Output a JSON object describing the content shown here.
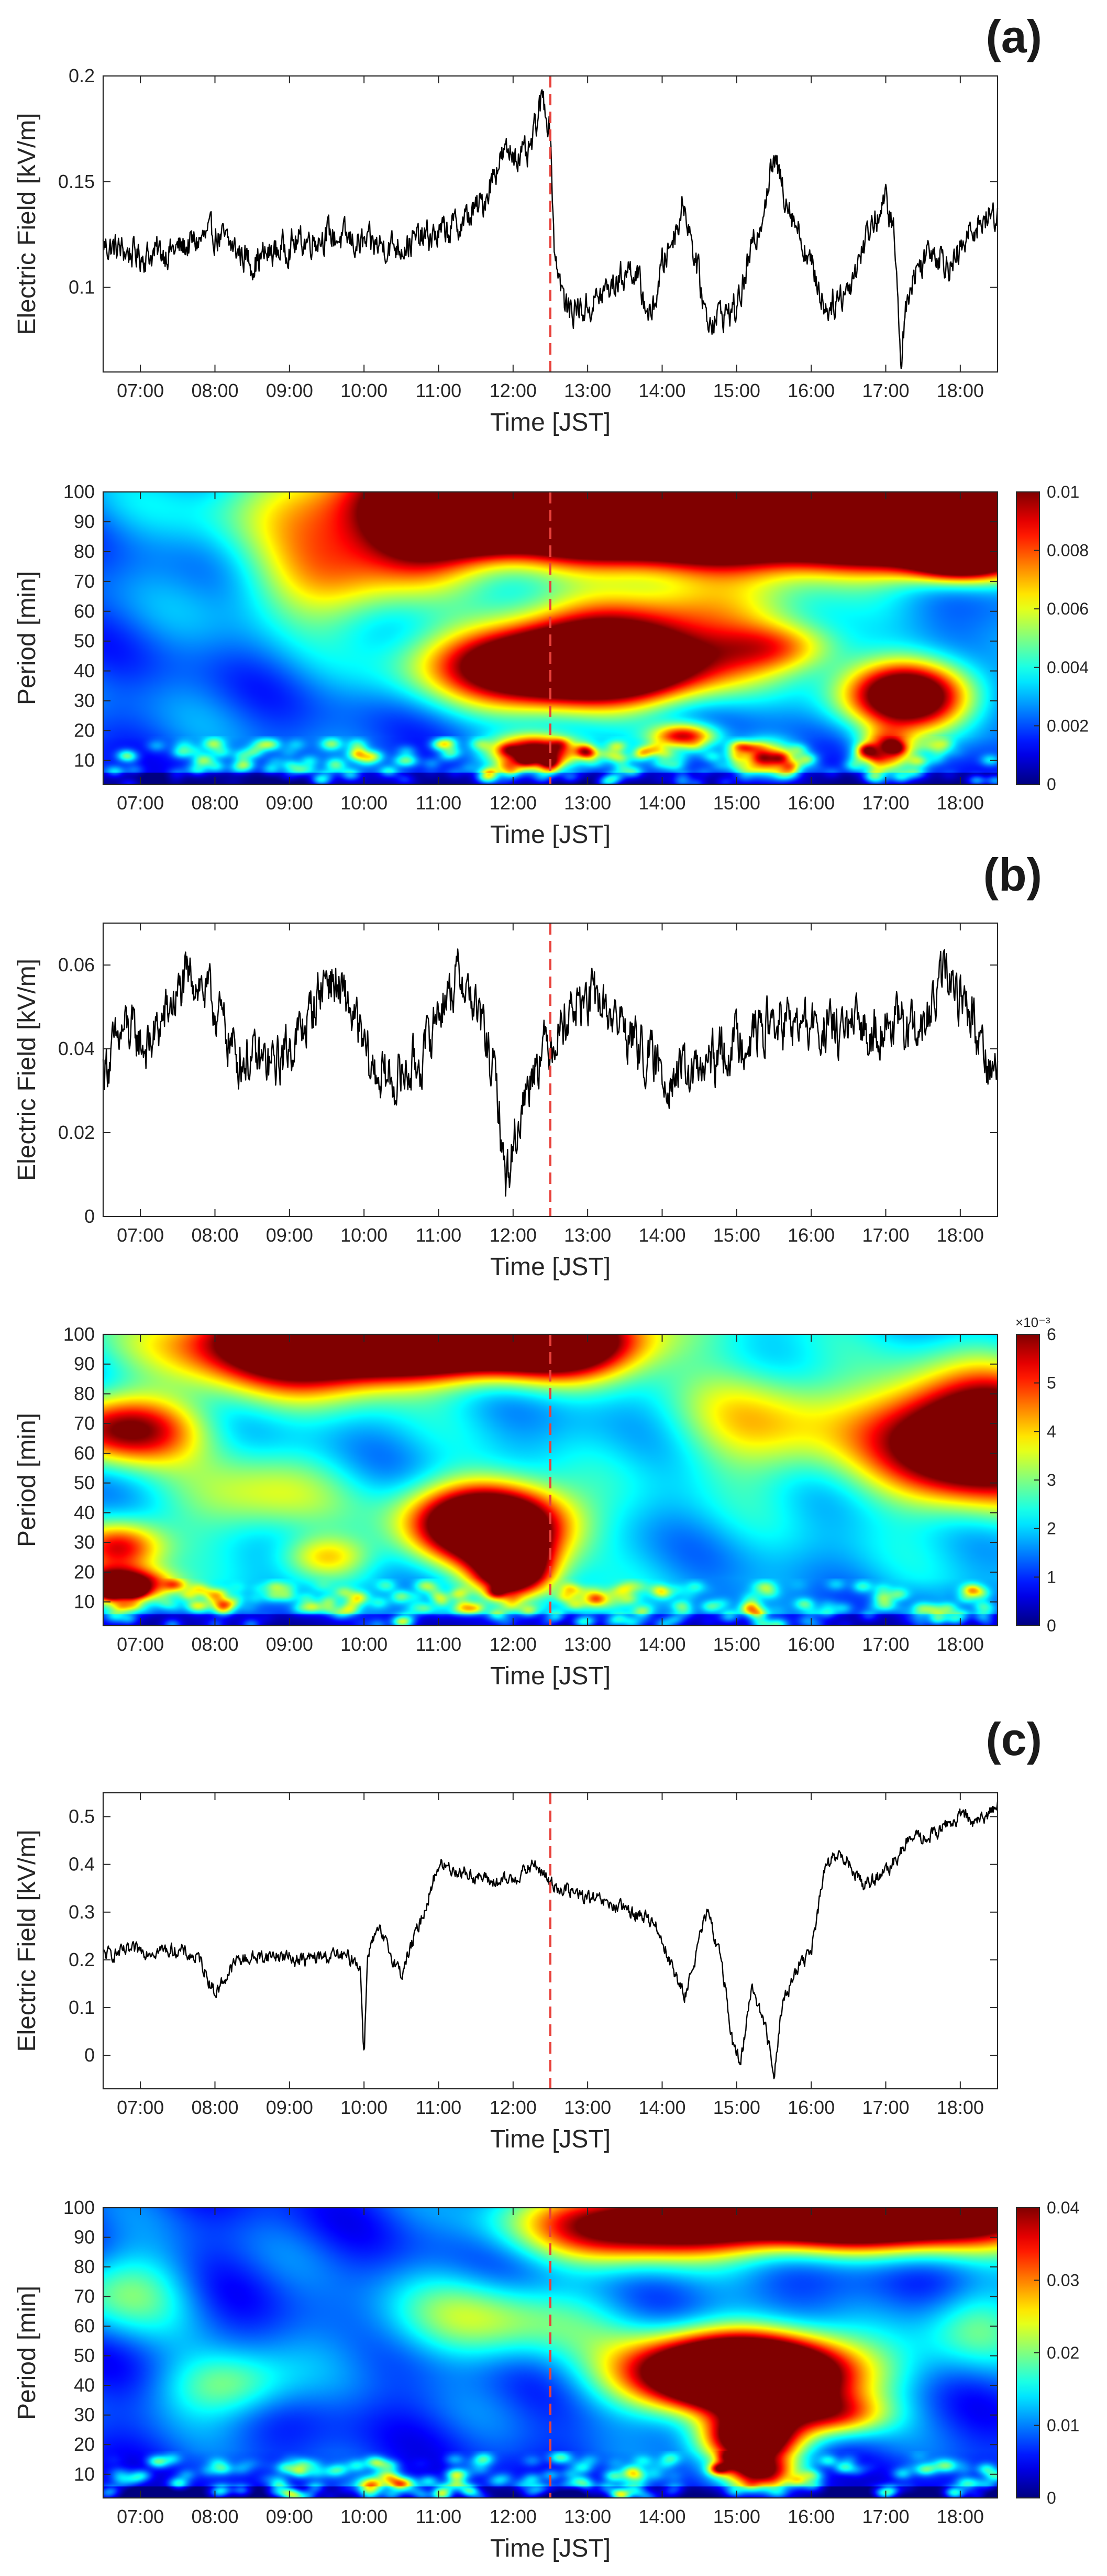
{
  "chart_data": [
    {
      "id": "a-field",
      "panel": "(a)",
      "type": "line",
      "xlabel": "Time [JST]",
      "ylabel": "Electric Field [kV/m]",
      "xlim": [
        6.5,
        18.5
      ],
      "ylim": [
        0.06,
        0.2
      ],
      "yticks": [
        0.1,
        0.15,
        0.2
      ],
      "ytick_labels": [
        "0.1",
        "0.15",
        "0.2"
      ],
      "xticks": [
        7,
        8,
        9,
        10,
        11,
        12,
        13,
        14,
        15,
        16,
        17,
        18
      ],
      "xtick_labels": [
        "07:00",
        "08:00",
        "09:00",
        "10:00",
        "11:00",
        "12:00",
        "13:00",
        "14:00",
        "15:00",
        "16:00",
        "17:00",
        "18:00"
      ],
      "marker_time": 12.5,
      "noise": 0.006,
      "x": [
        6.5,
        7.0,
        7.5,
        8.0,
        8.5,
        9.0,
        9.5,
        10.0,
        10.5,
        11.0,
        11.3,
        11.6,
        11.8,
        12.0,
        12.2,
        12.4,
        12.5,
        12.55,
        12.7,
        13.0,
        13.3,
        13.6,
        13.85,
        14.0,
        14.3,
        14.6,
        15.0,
        15.3,
        15.5,
        15.7,
        16.0,
        16.2,
        16.5,
        16.8,
        17.0,
        17.1,
        17.15,
        17.2,
        17.3,
        17.6,
        17.9,
        18.2,
        18.5
      ],
      "values": [
        0.12,
        0.115,
        0.118,
        0.125,
        0.112,
        0.12,
        0.125,
        0.12,
        0.12,
        0.125,
        0.13,
        0.14,
        0.16,
        0.165,
        0.16,
        0.19,
        0.175,
        0.12,
        0.09,
        0.09,
        0.1,
        0.11,
        0.085,
        0.11,
        0.14,
        0.085,
        0.09,
        0.13,
        0.16,
        0.14,
        0.11,
        0.09,
        0.1,
        0.13,
        0.14,
        0.13,
        0.1,
        0.065,
        0.1,
        0.12,
        0.11,
        0.13,
        0.135
      ]
    },
    {
      "id": "a-wavelet",
      "panel": "(a)",
      "type": "heatmap",
      "xlabel": "Time [JST]",
      "ylabel": "Period [min]",
      "xlim": [
        6.5,
        18.5
      ],
      "ylim": [
        2,
        100
      ],
      "yticks": [
        10,
        20,
        30,
        40,
        50,
        60,
        70,
        80,
        90,
        100
      ],
      "ytick_labels": [
        "10",
        "20",
        "30",
        "40",
        "50",
        "60",
        "70",
        "80",
        "90",
        "100"
      ],
      "xticks": [
        7,
        8,
        9,
        10,
        11,
        12,
        13,
        14,
        15,
        16,
        17,
        18
      ],
      "xtick_labels": [
        "07:00",
        "08:00",
        "09:00",
        "10:00",
        "11:00",
        "12:00",
        "13:00",
        "14:00",
        "15:00",
        "16:00",
        "17:00",
        "18:00"
      ],
      "colormap": "jet",
      "color_limits": [
        0,
        0.01
      ],
      "colorbar_ticks": [
        0,
        0.002,
        0.004,
        0.006,
        0.008,
        0.01
      ],
      "colorbar_tick_labels": [
        "0",
        "0.002",
        "0.004",
        "0.006",
        "0.008",
        "0.01"
      ],
      "colorbar_exponent": "",
      "marker_time": 12.5,
      "base_power": 0.22,
      "features": [
        {
          "x": 14.0,
          "y": 96,
          "sx": 2.6,
          "sy": 12,
          "power": 2.6
        },
        {
          "x": 11.6,
          "y": 95,
          "sx": 0.4,
          "sy": 8,
          "power": 0.9
        },
        {
          "x": 17.8,
          "y": 88,
          "sx": 1.4,
          "sy": 9,
          "power": 1.4
        },
        {
          "x": 18.0,
          "y": 76,
          "sx": 0.45,
          "sy": 4,
          "power": 0.7
        },
        {
          "x": 12.9,
          "y": 42,
          "sx": 1.2,
          "sy": 9,
          "power": 1.8
        },
        {
          "x": 14.2,
          "y": 60,
          "sx": 1.2,
          "sy": 8,
          "power": 0.45
        },
        {
          "x": 15.6,
          "y": 48,
          "sx": 0.6,
          "sy": 6,
          "power": 0.45
        },
        {
          "x": 17.3,
          "y": 32,
          "sx": 0.6,
          "sy": 8,
          "power": 1.1
        },
        {
          "x": 17.0,
          "y": 12,
          "sx": 0.25,
          "sy": 5,
          "power": 0.8
        },
        {
          "x": 15.4,
          "y": 10,
          "sx": 0.25,
          "sy": 4,
          "power": 0.8
        },
        {
          "x": 14.3,
          "y": 18,
          "sx": 0.3,
          "sy": 3,
          "power": 0.7
        },
        {
          "x": 12.3,
          "y": 12,
          "sx": 0.4,
          "sy": 4,
          "power": 1.2
        },
        {
          "x": 9.6,
          "y": 70,
          "sx": 0.9,
          "sy": 12,
          "power": 0.45
        },
        {
          "x": 10.8,
          "y": 86,
          "sx": 0.5,
          "sy": 10,
          "power": 0.35
        }
      ]
    },
    {
      "id": "b-field",
      "panel": "(b)",
      "type": "line",
      "xlabel": "Time [JST]",
      "ylabel": "Electric Field [kV/m]",
      "xlim": [
        6.5,
        18.5
      ],
      "ylim": [
        0,
        0.07
      ],
      "yticks": [
        0,
        0.02,
        0.04,
        0.06
      ],
      "ytick_labels": [
        "0",
        "0.02",
        "0.04",
        "0.06"
      ],
      "xticks": [
        7,
        8,
        9,
        10,
        11,
        12,
        13,
        14,
        15,
        16,
        17,
        18
      ],
      "xtick_labels": [
        "07:00",
        "08:00",
        "09:00",
        "10:00",
        "11:00",
        "12:00",
        "13:00",
        "14:00",
        "15:00",
        "16:00",
        "17:00",
        "18:00"
      ],
      "marker_time": 12.5,
      "noise": 0.005,
      "x": [
        6.5,
        6.8,
        7.1,
        7.4,
        7.7,
        8.0,
        8.3,
        8.8,
        9.2,
        9.5,
        9.8,
        10.1,
        10.4,
        10.8,
        11.0,
        11.3,
        11.6,
        11.8,
        11.9,
        12.1,
        12.3,
        12.5,
        12.8,
        13.1,
        13.5,
        13.8,
        14.0,
        14.5,
        15.0,
        15.5,
        16.0,
        16.5,
        17.0,
        17.5,
        17.8,
        18.1,
        18.4,
        18.5
      ],
      "values": [
        0.035,
        0.045,
        0.04,
        0.05,
        0.058,
        0.05,
        0.038,
        0.036,
        0.045,
        0.058,
        0.05,
        0.035,
        0.032,
        0.038,
        0.05,
        0.058,
        0.045,
        0.028,
        0.008,
        0.025,
        0.038,
        0.042,
        0.05,
        0.052,
        0.045,
        0.038,
        0.034,
        0.034,
        0.042,
        0.046,
        0.045,
        0.044,
        0.046,
        0.044,
        0.058,
        0.05,
        0.036,
        0.035
      ]
    },
    {
      "id": "b-wavelet",
      "panel": "(b)",
      "type": "heatmap",
      "xlabel": "Time [JST]",
      "ylabel": "Period [min]",
      "xlim": [
        6.5,
        18.5
      ],
      "ylim": [
        2,
        100
      ],
      "yticks": [
        10,
        20,
        30,
        40,
        50,
        60,
        70,
        80,
        90,
        100
      ],
      "ytick_labels": [
        "10",
        "20",
        "30",
        "40",
        "50",
        "60",
        "70",
        "80",
        "90",
        "100"
      ],
      "xticks": [
        7,
        8,
        9,
        10,
        11,
        12,
        13,
        14,
        15,
        16,
        17,
        18
      ],
      "xtick_labels": [
        "07:00",
        "08:00",
        "09:00",
        "10:00",
        "11:00",
        "12:00",
        "13:00",
        "14:00",
        "15:00",
        "16:00",
        "17:00",
        "18:00"
      ],
      "colormap": "jet",
      "color_limits": [
        0,
        6
      ],
      "colorbar_ticks": [
        0,
        1,
        2,
        3,
        4,
        5,
        6
      ],
      "colorbar_tick_labels": [
        "0",
        "1",
        "2",
        "3",
        "4",
        "5",
        "6"
      ],
      "colorbar_exponent": "×10⁻³",
      "marker_time": 12.5,
      "base_power": 0.3,
      "features": [
        {
          "x": 10.8,
          "y": 100,
          "sx": 1.6,
          "sy": 8,
          "power": 2.0
        },
        {
          "x": 9.2,
          "y": 92,
          "sx": 1.2,
          "sy": 10,
          "power": 0.6
        },
        {
          "x": 12.6,
          "y": 95,
          "sx": 0.7,
          "sy": 8,
          "power": 0.5
        },
        {
          "x": 11.7,
          "y": 36,
          "sx": 0.7,
          "sy": 9,
          "power": 1.4
        },
        {
          "x": 12.0,
          "y": 20,
          "sx": 0.35,
          "sy": 7,
          "power": 1.0
        },
        {
          "x": 18.2,
          "y": 65,
          "sx": 0.9,
          "sy": 14,
          "power": 1.3
        },
        {
          "x": 6.8,
          "y": 68,
          "sx": 0.7,
          "sy": 8,
          "power": 0.7
        },
        {
          "x": 6.7,
          "y": 28,
          "sx": 0.4,
          "sy": 6,
          "power": 0.6
        },
        {
          "x": 6.7,
          "y": 15,
          "sx": 0.45,
          "sy": 4,
          "power": 1.2
        },
        {
          "x": 8.5,
          "y": 45,
          "sx": 0.8,
          "sy": 10,
          "power": 0.3
        },
        {
          "x": 9.5,
          "y": 25,
          "sx": 0.4,
          "sy": 5,
          "power": 0.35
        },
        {
          "x": 13.1,
          "y": 10,
          "sx": 0.3,
          "sy": 3,
          "power": 0.4
        },
        {
          "x": 15.4,
          "y": 70,
          "sx": 0.9,
          "sy": 14,
          "power": 0.35
        }
      ]
    },
    {
      "id": "c-field",
      "panel": "(c)",
      "type": "line",
      "xlabel": "Time [JST]",
      "ylabel": "Electric Field [kV/m]",
      "xlim": [
        6.5,
        18.5
      ],
      "ylim": [
        -0.07,
        0.55
      ],
      "yticks": [
        0,
        0.1,
        0.2,
        0.3,
        0.4,
        0.5
      ],
      "ytick_labels": [
        "0",
        "0.1",
        "0.2",
        "0.3",
        "0.4",
        "0.5"
      ],
      "xticks": [
        7,
        8,
        9,
        10,
        11,
        12,
        13,
        14,
        15,
        16,
        17,
        18
      ],
      "xtick_labels": [
        "07:00",
        "08:00",
        "09:00",
        "10:00",
        "11:00",
        "12:00",
        "13:00",
        "14:00",
        "15:00",
        "16:00",
        "17:00",
        "18:00"
      ],
      "marker_time": 12.5,
      "noise": 0.012,
      "x": [
        6.5,
        7.0,
        7.5,
        7.8,
        8.0,
        8.3,
        8.8,
        9.2,
        9.6,
        9.9,
        9.95,
        10.0,
        10.05,
        10.2,
        10.5,
        10.8,
        11.0,
        11.4,
        11.8,
        12.0,
        12.3,
        12.5,
        12.8,
        13.2,
        13.6,
        13.9,
        14.0,
        14.3,
        14.6,
        14.8,
        14.95,
        15.05,
        15.2,
        15.4,
        15.5,
        15.6,
        15.8,
        16.0,
        16.2,
        16.4,
        16.7,
        17.0,
        17.3,
        17.6,
        18.0,
        18.3,
        18.5
      ],
      "values": [
        0.21,
        0.22,
        0.22,
        0.2,
        0.13,
        0.2,
        0.21,
        0.2,
        0.21,
        0.2,
        0.18,
        0.0,
        0.22,
        0.26,
        0.17,
        0.3,
        0.4,
        0.38,
        0.36,
        0.37,
        0.4,
        0.36,
        0.34,
        0.32,
        0.3,
        0.28,
        0.24,
        0.12,
        0.3,
        0.2,
        0.02,
        -0.02,
        0.15,
        0.05,
        -0.04,
        0.1,
        0.18,
        0.22,
        0.4,
        0.42,
        0.36,
        0.38,
        0.45,
        0.46,
        0.5,
        0.49,
        0.53
      ]
    },
    {
      "id": "c-wavelet",
      "panel": "(c)",
      "type": "heatmap",
      "xlabel": "Time [JST]",
      "ylabel": "Period [min]",
      "xlim": [
        6.5,
        18.5
      ],
      "ylim": [
        2,
        100
      ],
      "yticks": [
        10,
        20,
        30,
        40,
        50,
        60,
        70,
        80,
        90,
        100
      ],
      "ytick_labels": [
        "10",
        "20",
        "30",
        "40",
        "50",
        "60",
        "70",
        "80",
        "90",
        "100"
      ],
      "xticks": [
        7,
        8,
        9,
        10,
        11,
        12,
        13,
        14,
        15,
        16,
        17,
        18
      ],
      "xtick_labels": [
        "07:00",
        "08:00",
        "09:00",
        "10:00",
        "11:00",
        "12:00",
        "13:00",
        "14:00",
        "15:00",
        "16:00",
        "17:00",
        "18:00"
      ],
      "colormap": "jet",
      "color_limits": [
        0,
        0.04
      ],
      "colorbar_ticks": [
        0,
        0.01,
        0.02,
        0.03,
        0.04
      ],
      "colorbar_tick_labels": [
        "0",
        "0.01",
        "0.02",
        "0.03",
        "0.04"
      ],
      "colorbar_exponent": "",
      "marker_time": 12.5,
      "base_power": 0.18,
      "features": [
        {
          "x": 16.5,
          "y": 98,
          "sx": 2.0,
          "sy": 8,
          "power": 1.7
        },
        {
          "x": 13.5,
          "y": 92,
          "sx": 1.0,
          "sy": 8,
          "power": 0.6
        },
        {
          "x": 15.1,
          "y": 44,
          "sx": 1.0,
          "sy": 9,
          "power": 2.0
        },
        {
          "x": 15.2,
          "y": 22,
          "sx": 0.45,
          "sy": 6,
          "power": 1.2
        },
        {
          "x": 15.3,
          "y": 10,
          "sx": 0.35,
          "sy": 4,
          "power": 1.0
        },
        {
          "x": 16.3,
          "y": 30,
          "sx": 0.5,
          "sy": 5,
          "power": 0.5
        },
        {
          "x": 11.7,
          "y": 62,
          "sx": 1.2,
          "sy": 10,
          "power": 0.35
        },
        {
          "x": 8.2,
          "y": 40,
          "sx": 0.6,
          "sy": 8,
          "power": 0.35
        },
        {
          "x": 10.1,
          "y": 6,
          "sx": 0.15,
          "sy": 2,
          "power": 0.6
        },
        {
          "x": 6.8,
          "y": 72,
          "sx": 0.6,
          "sy": 10,
          "power": 0.3
        },
        {
          "x": 18.2,
          "y": 60,
          "sx": 0.5,
          "sy": 10,
          "power": 0.3
        }
      ]
    }
  ],
  "panels": [
    {
      "label": "(a)",
      "line_chart": 0,
      "wavelet_chart": 1
    },
    {
      "label": "(b)",
      "line_chart": 2,
      "wavelet_chart": 3
    },
    {
      "label": "(c)",
      "line_chart": 4,
      "wavelet_chart": 5
    }
  ],
  "colors": {
    "line": "#000000",
    "marker_line": "#e8413b",
    "axes": "#262626"
  }
}
